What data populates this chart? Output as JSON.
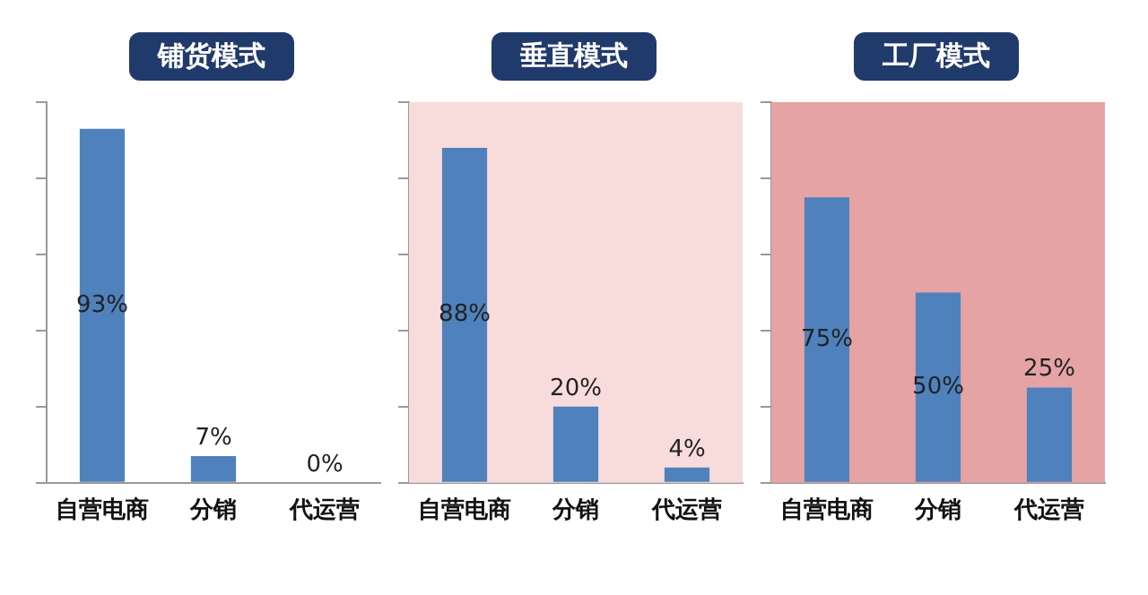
{
  "chart_data": [
    {
      "type": "bar",
      "title": "铺货模式",
      "categories": [
        "自营电商",
        "分销",
        "代运营"
      ],
      "values": [
        93,
        7,
        0
      ],
      "value_labels": [
        "93%",
        "7%",
        "0%"
      ],
      "color": "#4f81bd",
      "ylim": [
        0,
        100
      ],
      "yticks": [
        {
          "value": 0,
          "label": null
        },
        {
          "value": 20,
          "label": null
        },
        {
          "value": 40,
          "label": null
        },
        {
          "value": 60,
          "label": null
        },
        {
          "value": 80,
          "label": null
        },
        {
          "value": 100,
          "label": null
        }
      ],
      "tick_labels": "x",
      "grid": false,
      "legend": false
    },
    {
      "type": "bar",
      "title": "垂直模式",
      "categories": [
        "自营电商",
        "分销",
        "代运营"
      ],
      "values": [
        88,
        20,
        4
      ],
      "value_labels": [
        "88%",
        "20%",
        "4%"
      ],
      "color": "#4f81bd",
      "ylim": [
        0,
        100
      ],
      "yticks": [
        {
          "value": 0,
          "label": null
        },
        {
          "value": 20,
          "label": null
        },
        {
          "value": 40,
          "label": null
        },
        {
          "value": 60,
          "label": null
        },
        {
          "value": 80,
          "label": null
        },
        {
          "value": 100,
          "label": null
        }
      ],
      "tick_labels": "x",
      "grid": false,
      "legend": false,
      "bands": [
        {
          "axis": "y",
          "from": 0,
          "to": 100,
          "color": "#f8dcdc"
        }
      ]
    },
    {
      "type": "bar",
      "title": "工厂模式",
      "categories": [
        "自营电商",
        "分销",
        "代运营"
      ],
      "values": [
        75,
        50,
        25
      ],
      "value_labels": [
        "75%",
        "50%",
        "25%"
      ],
      "color": "#4f81bd",
      "ylim": [
        0,
        100
      ],
      "yticks": [
        {
          "value": 0,
          "label": null
        },
        {
          "value": 20,
          "label": null
        },
        {
          "value": 40,
          "label": null
        },
        {
          "value": 60,
          "label": null
        },
        {
          "value": 80,
          "label": null
        },
        {
          "value": 100,
          "label": null
        }
      ],
      "tick_labels": "x",
      "grid": false,
      "legend": false,
      "bands": [
        {
          "axis": "y",
          "from": 0,
          "to": 100,
          "color": "#e6a3a3"
        }
      ]
    }
  ]
}
